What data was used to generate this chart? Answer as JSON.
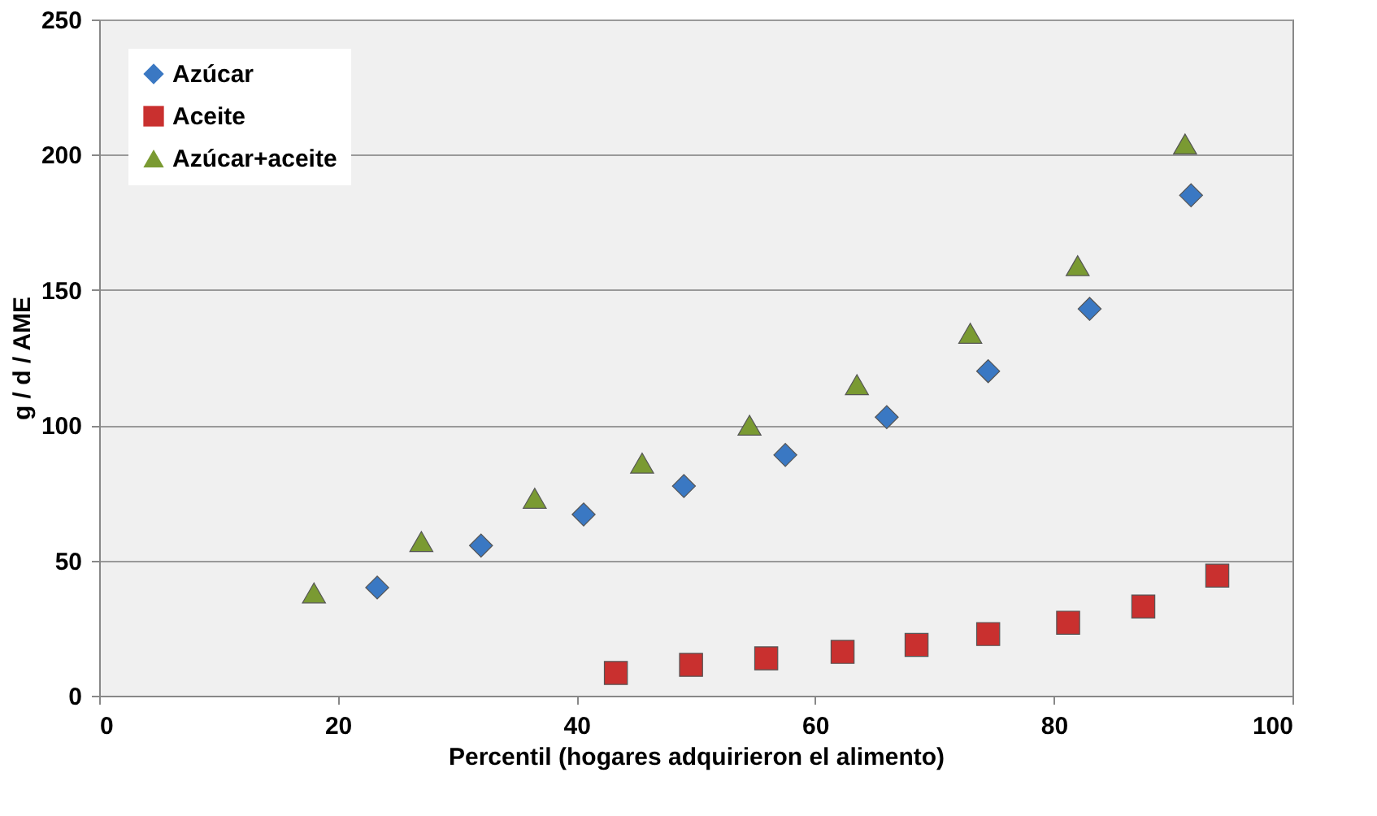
{
  "chart_data": {
    "type": "scatter",
    "xlabel": "Percentil (hogares adquirieron el alimento)",
    "ylabel": "g / d / AME",
    "xlim": [
      0,
      100
    ],
    "xticks": [
      0,
      20,
      40,
      60,
      80,
      100
    ],
    "ylim": [
      0,
      250
    ],
    "yticks": [
      0,
      50,
      100,
      150,
      200,
      250
    ],
    "grid": "y",
    "legend": "top left",
    "series": [
      {
        "name": "Azúcar",
        "color": "#3a78c3",
        "marker": "diamond",
        "x": [
          23.3,
          32,
          40.6,
          49,
          57.5,
          66,
          74.5,
          83,
          91.5
        ],
        "values": [
          40,
          55.5,
          67,
          77.5,
          89,
          103,
          120,
          143,
          185
        ]
      },
      {
        "name": "Aceite",
        "color": "#c9302f",
        "marker": "square",
        "x": [
          43.3,
          49.6,
          55.9,
          62.3,
          68.5,
          74.5,
          81.2,
          87.5,
          93.7
        ],
        "values": [
          8.4,
          11.4,
          13.8,
          16.2,
          18.8,
          22.8,
          27,
          33,
          44.4
        ]
      },
      {
        "name": "Azúcar+aceite",
        "color": "#7a9a32",
        "marker": "triangle",
        "x": [
          18,
          27,
          36.5,
          45.5,
          54.5,
          63.5,
          73,
          82,
          91
        ],
        "values": [
          38,
          57,
          73,
          86,
          100,
          115,
          134,
          159,
          204
        ]
      }
    ]
  }
}
